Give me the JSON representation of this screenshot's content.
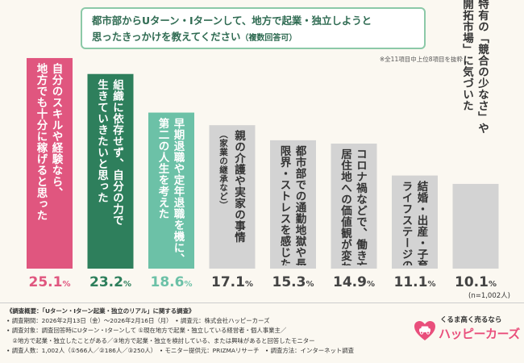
{
  "title": {
    "line1": "都市部からUターン・Iターンして、地方で起業・独立しようと",
    "line2": "思ったきっかけを教えてください",
    "line2_small": "（複数回答可）"
  },
  "note": "※全11項目中上位8項目を抜粋",
  "chart_data": {
    "type": "bar",
    "categories": [
      "自分のスキルや経験なら、\n地方でも十分に稼げると思った",
      "組織に依存せず、自分の力で\n生きていきたいと思った",
      "早期退職や定年退職を機に、\n第二の人生を考えた",
      "親の介護や実家の事情\n（家業の継承など）",
      "都市部での通勤地獄や長時間労働に\n限界・ストレスを感じた",
      "コロナ禍などで、働き方や\n居住地への価値観が変わった",
      "結婚・出産・子育てなど、\nライフステージの変化",
      "地方特有の「競合の少なさ」や\n「未開拓市場」に気づいた"
    ],
    "values": [
      25.1,
      23.2,
      18.6,
      17.1,
      15.3,
      14.9,
      11.1,
      10.1
    ],
    "value_labels": [
      "25.1",
      "23.2",
      "18.6",
      "17.1",
      "15.3",
      "14.9",
      "11.1",
      "10.1"
    ],
    "unit": "%",
    "ylim": [
      0,
      30
    ],
    "grid": false,
    "n_label": "(n=1,002人)",
    "colors": {
      "bars": [
        "#e0567f",
        "#2e7f5c",
        "#6cc1a7",
        "#d3d3d3",
        "#d3d3d3",
        "#d3d3d3",
        "#d3d3d3",
        "#d3d3d3"
      ],
      "label_text": [
        "#ffffff",
        "#ffffff",
        "#ffffff",
        "#333333",
        "#333333",
        "#333333",
        "#333333",
        "#333333"
      ],
      "value_text": [
        "#e0567f",
        "#2e7f5c",
        "#6cc1a7",
        "#444444",
        "#444444",
        "#444444",
        "#444444",
        "#444444"
      ]
    }
  },
  "survey": {
    "head": "《調査概要：「Uターン・Iターン起業・独立のリアル」に関する調査》",
    "lines": [
      "• 調査期間：2026年2月13日（金）〜2026年2月16日（月）　• 調査元：株式会社ハッピーカーズ",
      "• 調査対象：調査回答時にUターン・Iターンして ①現在地方で起業・独立している経営者・個人事業主／",
      "　②地方で起業・独立したことがある／③地方で起業・独立を検討している、または興味があると回答したモニター",
      "• 調査人数：1,002人（①566人／②186人／③250人）　• モニター提供元：PRIZMAリサーチ　• 調査方法：インターネット調査"
    ]
  },
  "brand": {
    "tagline": "くるま高く売るなら",
    "name": "ハッピーカーズ",
    "logo_icon": "car-heart-logo-icon"
  }
}
